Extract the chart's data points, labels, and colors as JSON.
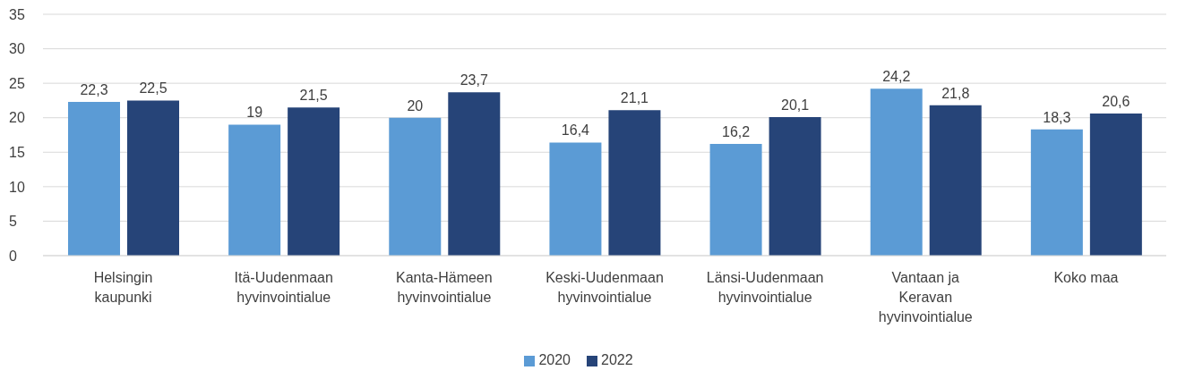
{
  "chart_data": {
    "type": "bar",
    "categories": [
      "Helsingin kaupunki",
      "Itä-Uudenmaan hyvinvointialue",
      "Kanta-Hämeen hyvinvointialue",
      "Keski-Uudenmaan hyvinvointialue",
      "Länsi-Uudenmaan hyvinvointialue",
      "Vantaan ja Keravan hyvinvointialue",
      "Koko maa"
    ],
    "series": [
      {
        "name": "2020",
        "color": "#5b9bd5",
        "values": [
          22.3,
          19,
          20,
          16.4,
          16.2,
          24.2,
          18.3
        ],
        "value_labels": [
          "22,3",
          "19",
          "20",
          "16,4",
          "16,2",
          "24,2",
          "18,3"
        ]
      },
      {
        "name": "2022",
        "color": "#264478",
        "values": [
          22.5,
          21.5,
          23.7,
          21.1,
          20.1,
          21.8,
          20.6
        ],
        "value_labels": [
          "22,5",
          "21,5",
          "23,7",
          "21,1",
          "20,1",
          "21,8",
          "20,6"
        ]
      }
    ],
    "ylim": [
      0,
      35
    ],
    "yticks": [
      0,
      5,
      10,
      15,
      20,
      25,
      30,
      35
    ],
    "grid": "y",
    "legend": "bottom"
  }
}
